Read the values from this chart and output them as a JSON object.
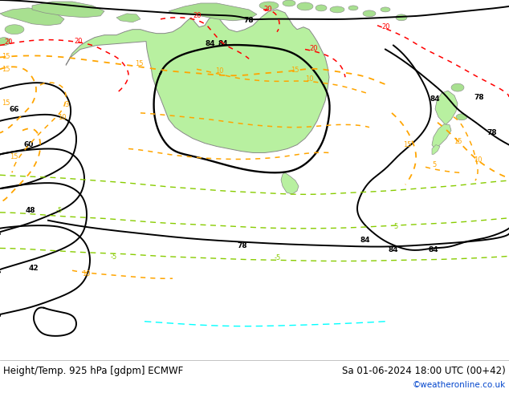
{
  "title_left": "Height/Temp. 925 hPa [gdpm] ECMWF",
  "title_right": "Sa 01-06-2024 18:00 UTC (00+42)",
  "credit": "©weatheronline.co.uk",
  "map_bg": "#d4d8dc",
  "footer_bg": "#ffffff",
  "footer_text_color": "#000000",
  "credit_color": "#0044cc",
  "font_size_title": 8.5,
  "font_size_credit": 7.5,
  "land_color": "#b8f0a0",
  "land_edge": "#888888",
  "contour_black_lw": 1.4,
  "contour_temp_lw": 1.1
}
